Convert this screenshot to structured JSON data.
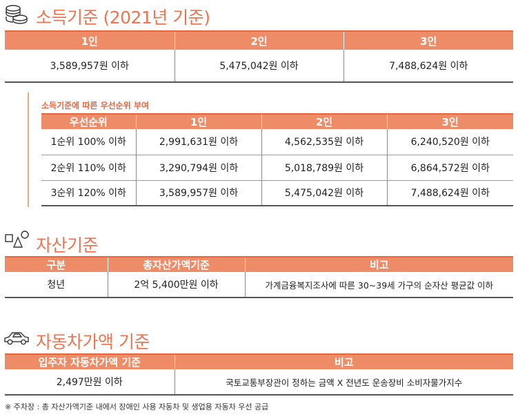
{
  "income": {
    "title": "소득기준 (2021년 기준)",
    "headers": [
      "1인",
      "2인",
      "3인"
    ],
    "values": [
      "3,589,957원 이하",
      "5,475,042원 이하",
      "7,488,624원 이하"
    ],
    "priority_caption": "소득기준에 따른 우선순위 부여",
    "priority_headers": [
      "우선순위",
      "1인",
      "2인",
      "3인"
    ],
    "priority_rows": [
      [
        "1순위 100% 이하",
        "2,991,631원 이하",
        "4,562,535원 이하",
        "6,240,520원 이하"
      ],
      [
        "2순위 110% 이하",
        "3,290,794원 이하",
        "5,018,789원 이하",
        "6,864,572원 이하"
      ],
      [
        "3순위 120% 이하",
        "3,589,957원 이하",
        "5,475,042원 이하",
        "7,488,624원 이하"
      ]
    ]
  },
  "assets": {
    "title": "자산기준",
    "headers": [
      "구분",
      "총자산가액기준",
      "비고"
    ],
    "row": [
      "청년",
      "2억 5,400만원 이하",
      "가계금융복지조사에 따른 30~39세 가구의  순자산 평균값 이하"
    ]
  },
  "car": {
    "title": "자동차가액 기준",
    "headers": [
      "입주자 자동차가액 기준",
      "비고"
    ],
    "row": [
      "2,497만원 이하",
      "국토교통부장관이 정하는 금액 X 전년도 운송장비 소비자물가지수"
    ]
  },
  "footnote": "※ 주차장 : 총 자산가액기준 내에서 장애인 사용 자동차 및 생업용 자동차 우선 공급",
  "colors": {
    "accent": "#ec7550",
    "header_fill": "#ee8c67"
  }
}
